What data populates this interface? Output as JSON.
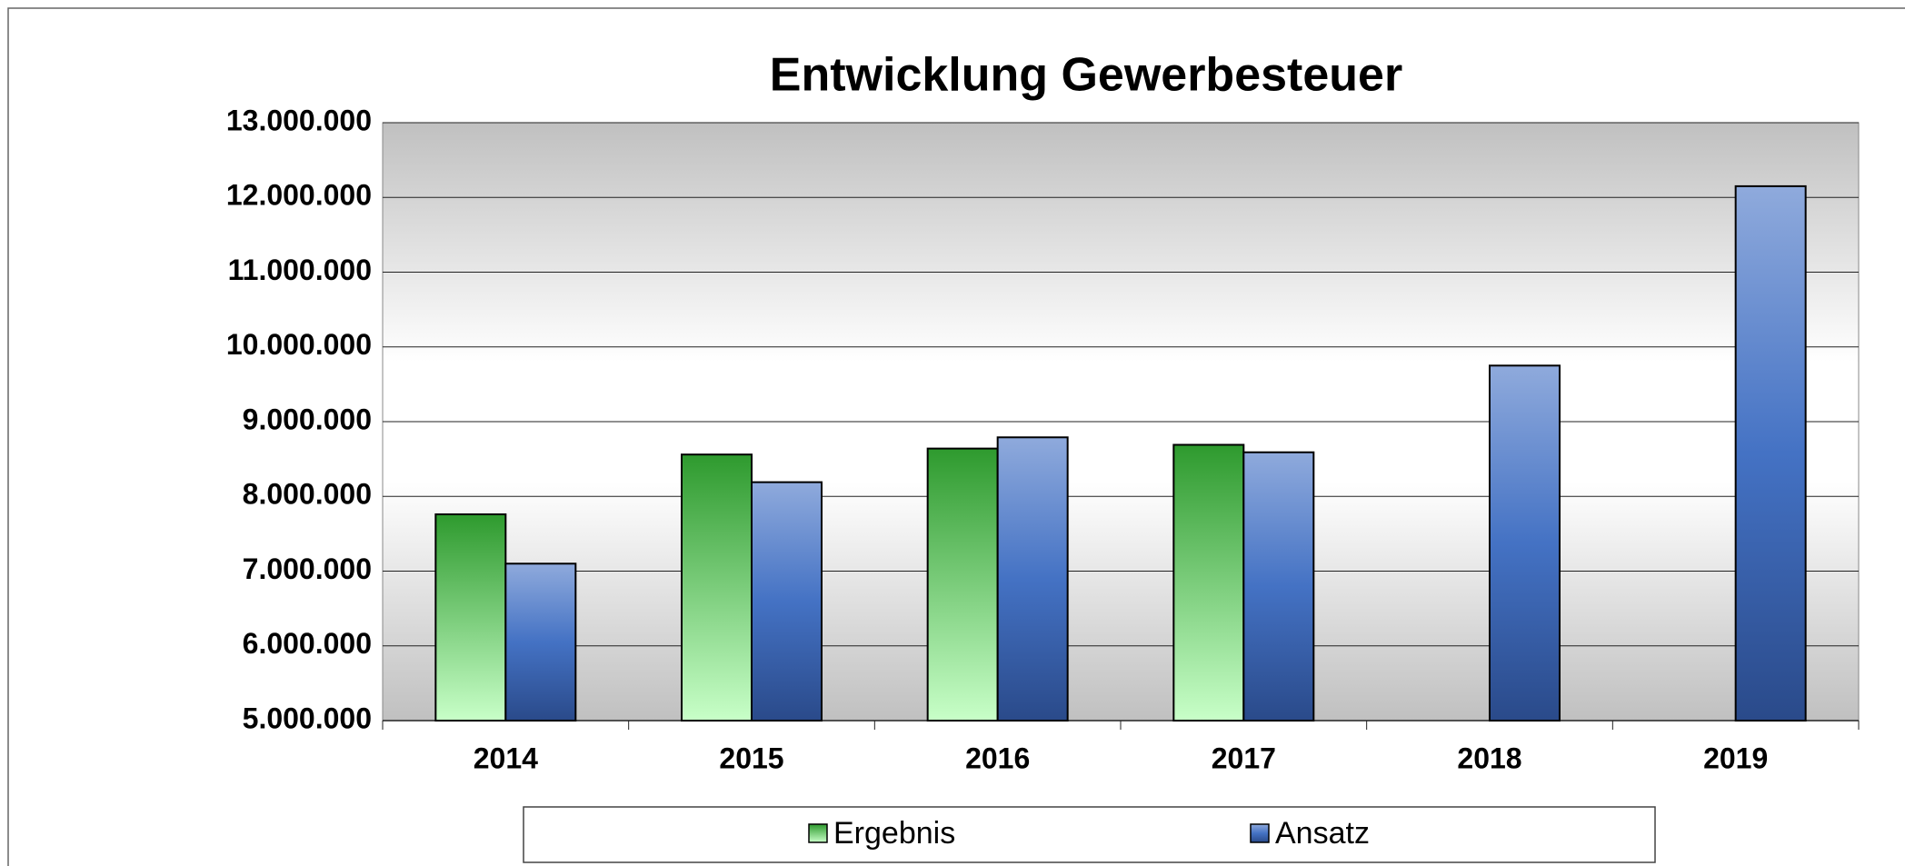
{
  "chart_data": {
    "type": "bar",
    "title": "Entwicklung Gewerbesteuer",
    "categories": [
      "2014",
      "2015",
      "2016",
      "2017",
      "2018",
      "2019"
    ],
    "series": [
      {
        "name": "Ergebnis",
        "color": "#2e9a2e",
        "values": [
          7760000,
          8560000,
          8640000,
          8690000,
          null,
          null
        ]
      },
      {
        "name": "Ansatz",
        "color": "#4472c4",
        "values": [
          7100000,
          8190000,
          8790000,
          8590000,
          9750000,
          12150000
        ]
      }
    ],
    "ylim": [
      5000000,
      13000000
    ],
    "yticks": [
      {
        "value": 5000000,
        "label": "5.000.000"
      },
      {
        "value": 6000000,
        "label": "6.000.000"
      },
      {
        "value": 7000000,
        "label": "7.000.000"
      },
      {
        "value": 8000000,
        "label": "8.000.000"
      },
      {
        "value": 9000000,
        "label": "9.000.000"
      },
      {
        "value": 10000000,
        "label": "10.000.000"
      },
      {
        "value": 11000000,
        "label": "11.000.000"
      },
      {
        "value": 12000000,
        "label": "12.000.000"
      },
      {
        "value": 13000000,
        "label": "13.000.000"
      }
    ],
    "grid": true,
    "legend": "bottom"
  }
}
